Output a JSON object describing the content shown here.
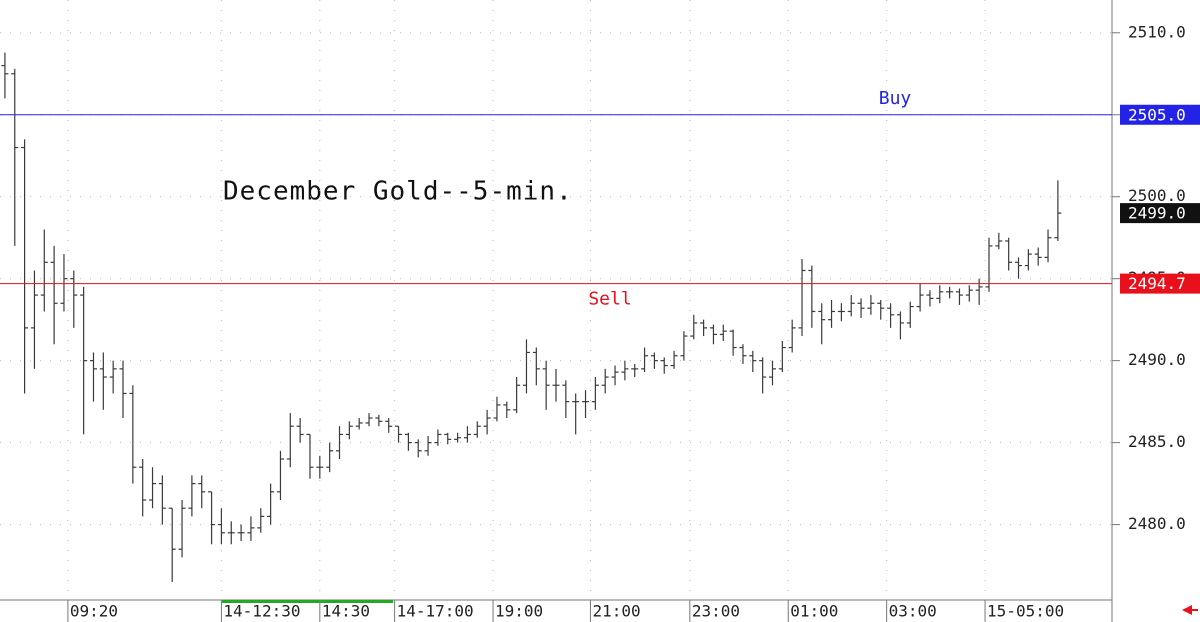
{
  "chart_data": {
    "type": "ohlc",
    "title": "December Gold--5-min.",
    "color": "#3a3a3a",
    "open": [
      2508.0,
      2507.5,
      2503.0,
      2492.0,
      2494.0,
      2496.0,
      2493.5,
      2495.0,
      2494.0,
      2490.0,
      2489.5,
      2489.0,
      2489.5,
      2488.0,
      2483.5,
      2481.5,
      2482.5,
      2481.0,
      2478.5,
      2481.0,
      2482.5,
      2482.0,
      2480.0,
      2479.5,
      2479.5,
      2479.5,
      2479.8,
      2480.5,
      2482.0,
      2484.0,
      2486.0,
      2485.5,
      2483.5,
      2483.5,
      2484.5,
      2485.5,
      2486.0,
      2486.2,
      2486.5,
      2486.3,
      2486.0,
      2485.5,
      2485.0,
      2484.5,
      2485.0,
      2485.5,
      2485.2,
      2485.3,
      2485.5,
      2486.0,
      2486.5,
      2487.3,
      2487.0,
      2488.5,
      2490.5,
      2489.5,
      2488.5,
      2488.5,
      2487.5,
      2487.5,
      2487.5,
      2488.5,
      2489.0,
      2489.3,
      2489.5,
      2489.5,
      2490.3,
      2490.0,
      2489.7,
      2490.3,
      2491.5,
      2492.3,
      2492.0,
      2491.6,
      2491.8,
      2490.8,
      2490.3,
      2490.0,
      2489.0,
      2489.5,
      2490.8,
      2492.0,
      2495.5,
      2493.0,
      2492.5,
      2493.0,
      2493.0,
      2493.5,
      2493.2,
      2493.5,
      2493.2,
      2492.8,
      2492.3,
      2493.3,
      2494.0,
      2493.8,
      2494.2,
      2494.2,
      2494.0,
      2494.3,
      2494.5,
      2497.0,
      2497.3,
      2496.0,
      2495.8,
      2496.5,
      2496.3,
      2497.5
    ],
    "high": [
      2508.8,
      2507.8,
      2503.5,
      2495.5,
      2498.0,
      2497.0,
      2496.5,
      2495.5,
      2494.5,
      2490.5,
      2490.5,
      2490.0,
      2490.0,
      2488.5,
      2484.0,
      2483.5,
      2483.0,
      2481.0,
      2481.5,
      2483.0,
      2483.0,
      2482.0,
      2481.0,
      2480.2,
      2480.0,
      2480.5,
      2481.0,
      2482.5,
      2484.5,
      2486.8,
      2486.5,
      2485.5,
      2484.2,
      2485.0,
      2486.0,
      2486.3,
      2486.5,
      2486.8,
      2486.7,
      2486.5,
      2486.0,
      2485.6,
      2485.2,
      2485.4,
      2485.8,
      2485.6,
      2485.6,
      2486.0,
      2486.3,
      2487.0,
      2487.8,
      2487.5,
      2489.0,
      2491.3,
      2490.8,
      2490.0,
      2489.5,
      2488.8,
      2488.0,
      2488.2,
      2489.0,
      2489.5,
      2489.7,
      2490.0,
      2489.8,
      2490.8,
      2490.5,
      2490.2,
      2490.6,
      2491.8,
      2492.8,
      2492.5,
      2492.2,
      2492.2,
      2491.9,
      2491.0,
      2490.6,
      2490.2,
      2490.0,
      2491.2,
      2492.5,
      2496.2,
      2495.8,
      2493.5,
      2493.7,
      2493.5,
      2494.0,
      2493.8,
      2494.0,
      2493.7,
      2493.5,
      2493.0,
      2493.6,
      2494.7,
      2494.3,
      2494.6,
      2494.5,
      2494.4,
      2494.6,
      2495.0,
      2497.5,
      2497.8,
      2497.5,
      2496.3,
      2496.8,
      2496.9,
      2498.0,
      2501.0
    ],
    "low": [
      2506.0,
      2497.0,
      2488.0,
      2489.5,
      2493.0,
      2491.0,
      2493.0,
      2492.0,
      2485.5,
      2487.5,
      2487.0,
      2488.0,
      2486.5,
      2482.5,
      2480.5,
      2481.0,
      2480.0,
      2476.5,
      2478.0,
      2480.5,
      2481.0,
      2478.8,
      2478.8,
      2478.8,
      2479.0,
      2479.0,
      2479.5,
      2480.0,
      2481.5,
      2483.5,
      2485.0,
      2482.8,
      2482.8,
      2483.2,
      2484.0,
      2485.2,
      2485.8,
      2486.0,
      2486.0,
      2485.6,
      2485.0,
      2484.5,
      2484.1,
      2484.2,
      2484.8,
      2484.9,
      2485.0,
      2485.0,
      2485.3,
      2485.5,
      2486.3,
      2486.5,
      2486.8,
      2488.0,
      2488.5,
      2487.0,
      2487.5,
      2486.5,
      2485.5,
      2486.5,
      2487.0,
      2488.0,
      2488.5,
      2488.8,
      2489.0,
      2489.3,
      2489.5,
      2489.2,
      2489.5,
      2490.0,
      2491.3,
      2491.5,
      2491.0,
      2491.2,
      2490.3,
      2489.8,
      2489.3,
      2488.0,
      2488.5,
      2489.3,
      2490.5,
      2491.5,
      2492.0,
      2491.0,
      2492.0,
      2492.4,
      2492.7,
      2492.6,
      2492.8,
      2492.5,
      2492.0,
      2491.3,
      2492.0,
      2493.0,
      2493.3,
      2493.5,
      2493.8,
      2493.4,
      2493.6,
      2493.4,
      2494.2,
      2496.8,
      2495.5,
      2495.0,
      2495.5,
      2495.8,
      2496.0,
      2497.3
    ],
    "close": [
      2507.5,
      2503.0,
      2492.0,
      2494.0,
      2496.0,
      2493.5,
      2495.0,
      2494.0,
      2490.0,
      2489.5,
      2489.0,
      2489.5,
      2488.0,
      2483.5,
      2481.5,
      2482.5,
      2481.0,
      2478.5,
      2481.0,
      2482.5,
      2482.0,
      2480.0,
      2479.5,
      2479.5,
      2479.5,
      2479.8,
      2480.5,
      2482.0,
      2484.0,
      2486.0,
      2485.5,
      2483.5,
      2483.5,
      2484.5,
      2485.5,
      2486.0,
      2486.2,
      2486.5,
      2486.3,
      2486.0,
      2485.5,
      2485.0,
      2484.5,
      2485.0,
      2485.5,
      2485.2,
      2485.3,
      2485.5,
      2486.0,
      2486.5,
      2487.3,
      2487.0,
      2488.5,
      2490.5,
      2489.5,
      2488.5,
      2488.5,
      2487.5,
      2487.5,
      2487.5,
      2488.5,
      2489.0,
      2489.3,
      2489.5,
      2489.5,
      2490.3,
      2490.0,
      2489.7,
      2490.3,
      2491.5,
      2492.3,
      2492.0,
      2491.6,
      2491.8,
      2490.8,
      2490.3,
      2490.0,
      2489.0,
      2489.5,
      2490.8,
      2492.0,
      2495.5,
      2493.0,
      2492.5,
      2493.0,
      2493.0,
      2493.5,
      2493.2,
      2493.5,
      2493.2,
      2492.8,
      2492.3,
      2493.3,
      2494.0,
      2493.8,
      2494.2,
      2494.2,
      2494.0,
      2494.3,
      2494.5,
      2497.0,
      2497.3,
      2496.0,
      2495.8,
      2496.5,
      2496.3,
      2497.5,
      2499.0
    ],
    "last_price": {
      "value": 2499.0,
      "label": "2499.0",
      "color": "#111111"
    },
    "levels": [
      {
        "name": "Buy",
        "value": 2505.0,
        "label": "2505.0",
        "color": "#2323e8"
      },
      {
        "name": "Sell",
        "value": 2494.7,
        "label": "2494.7",
        "color": "#e8101a"
      }
    ],
    "xlim": [
      -0.5,
      112.5
    ],
    "xticks": [
      {
        "value": 6.4,
        "label": "09:20"
      },
      {
        "value": 22,
        "label": "14-12:30"
      },
      {
        "value": 32,
        "label": "14:30"
      },
      {
        "value": 39.6,
        "label": "14-17:00"
      },
      {
        "value": 49.6,
        "label": "19:00"
      },
      {
        "value": 59.5,
        "label": "21:00"
      },
      {
        "value": 69.6,
        "label": "23:00"
      },
      {
        "value": 79.6,
        "label": "01:00"
      },
      {
        "value": 89.6,
        "label": "03:00"
      },
      {
        "value": 99.6,
        "label": "15-05:00"
      }
    ],
    "ylim": [
      2475.4,
      2512.0
    ],
    "yticks": [
      {
        "value": 2480,
        "label": "2480.0"
      },
      {
        "value": 2485,
        "label": "2485.0"
      },
      {
        "value": 2490,
        "label": "2490.0"
      },
      {
        "value": 2495,
        "label": "2495.0"
      },
      {
        "value": 2500,
        "label": "2500.0"
      },
      {
        "value": 2505,
        "label": "2505.0"
      },
      {
        "value": 2510,
        "label": "2510.0"
      }
    ],
    "grid": true
  }
}
